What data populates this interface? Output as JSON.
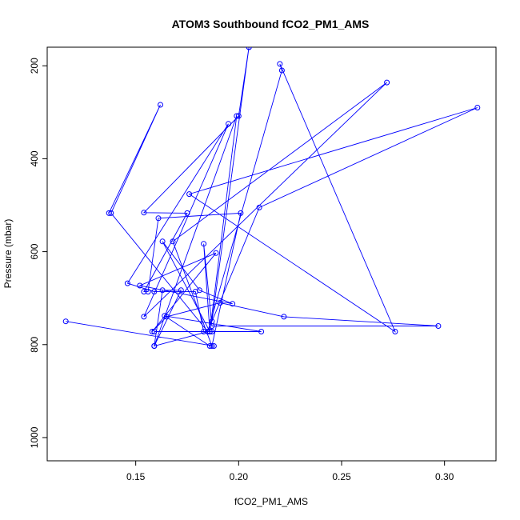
{
  "chart_data": {
    "type": "line",
    "title": "ATOM3 Southbound fCO2_PM1_AMS",
    "xlabel": "fCO2_PM1_AMS",
    "ylabel": "Pressure (mbar)",
    "xlim": [
      0.107,
      0.325
    ],
    "ylim": [
      1050,
      160
    ],
    "y_reversed": true,
    "x_ticks": [
      0.15,
      0.2,
      0.25,
      0.3
    ],
    "x_tick_labels": [
      "0.15",
      "0.20",
      "0.25",
      "0.30"
    ],
    "y_ticks": [
      200,
      400,
      600,
      800,
      1000
    ],
    "y_tick_labels": [
      "200",
      "400",
      "600",
      "800",
      "1000"
    ],
    "grid": false,
    "color": "#0000ff",
    "series": [
      {
        "points": [
          [
            0.116,
            750
          ],
          [
            0.188,
            803
          ],
          [
            0.186,
            803
          ],
          [
            0.164,
            738
          ],
          [
            0.211,
            772
          ],
          [
            0.159,
            772
          ],
          [
            0.187,
            772
          ],
          [
            0.185,
            772
          ],
          [
            0.159,
            803
          ],
          [
            0.172,
            683
          ],
          [
            0.163,
            683
          ],
          [
            0.159,
            803
          ],
          [
            0.199,
            308
          ],
          [
            0.186,
            772
          ],
          [
            0.163,
            578
          ],
          [
            0.181,
            683
          ],
          [
            0.197,
            712
          ],
          [
            0.152,
            673
          ],
          [
            0.189,
            603
          ],
          [
            0.158,
            772
          ],
          [
            0.165,
            740
          ],
          [
            0.191,
            710
          ],
          [
            0.222,
            740
          ],
          [
            0.297,
            760
          ],
          [
            0.187,
            760
          ],
          [
            0.183,
            583
          ],
          [
            0.186,
            772
          ],
          [
            0.183,
            772
          ],
          [
            0.179,
            686
          ],
          [
            0.159,
            686
          ],
          [
            0.146,
            668
          ],
          [
            0.195,
            325
          ],
          [
            0.154,
            740
          ],
          [
            0.272,
            236
          ],
          [
            0.168,
            578
          ],
          [
            0.187,
            803
          ],
          [
            0.201,
            517
          ],
          [
            0.161,
            528
          ],
          [
            0.156,
            686
          ],
          [
            0.154,
            686
          ],
          [
            0.175,
            517
          ],
          [
            0.154,
            516
          ],
          [
            0.2,
            308
          ],
          [
            0.205,
            160
          ],
          [
            0.205,
            160
          ],
          [
            0.187,
            750
          ],
          [
            0.21,
            505
          ],
          [
            0.316,
            290
          ],
          [
            0.176,
            476
          ],
          [
            0.276,
            772
          ],
          [
            0.22,
            196
          ],
          [
            0.221,
            210
          ],
          [
            0.185,
            772
          ],
          [
            0.138,
            517
          ],
          [
            0.162,
            284
          ],
          [
            0.137,
            517
          ]
        ]
      }
    ]
  }
}
